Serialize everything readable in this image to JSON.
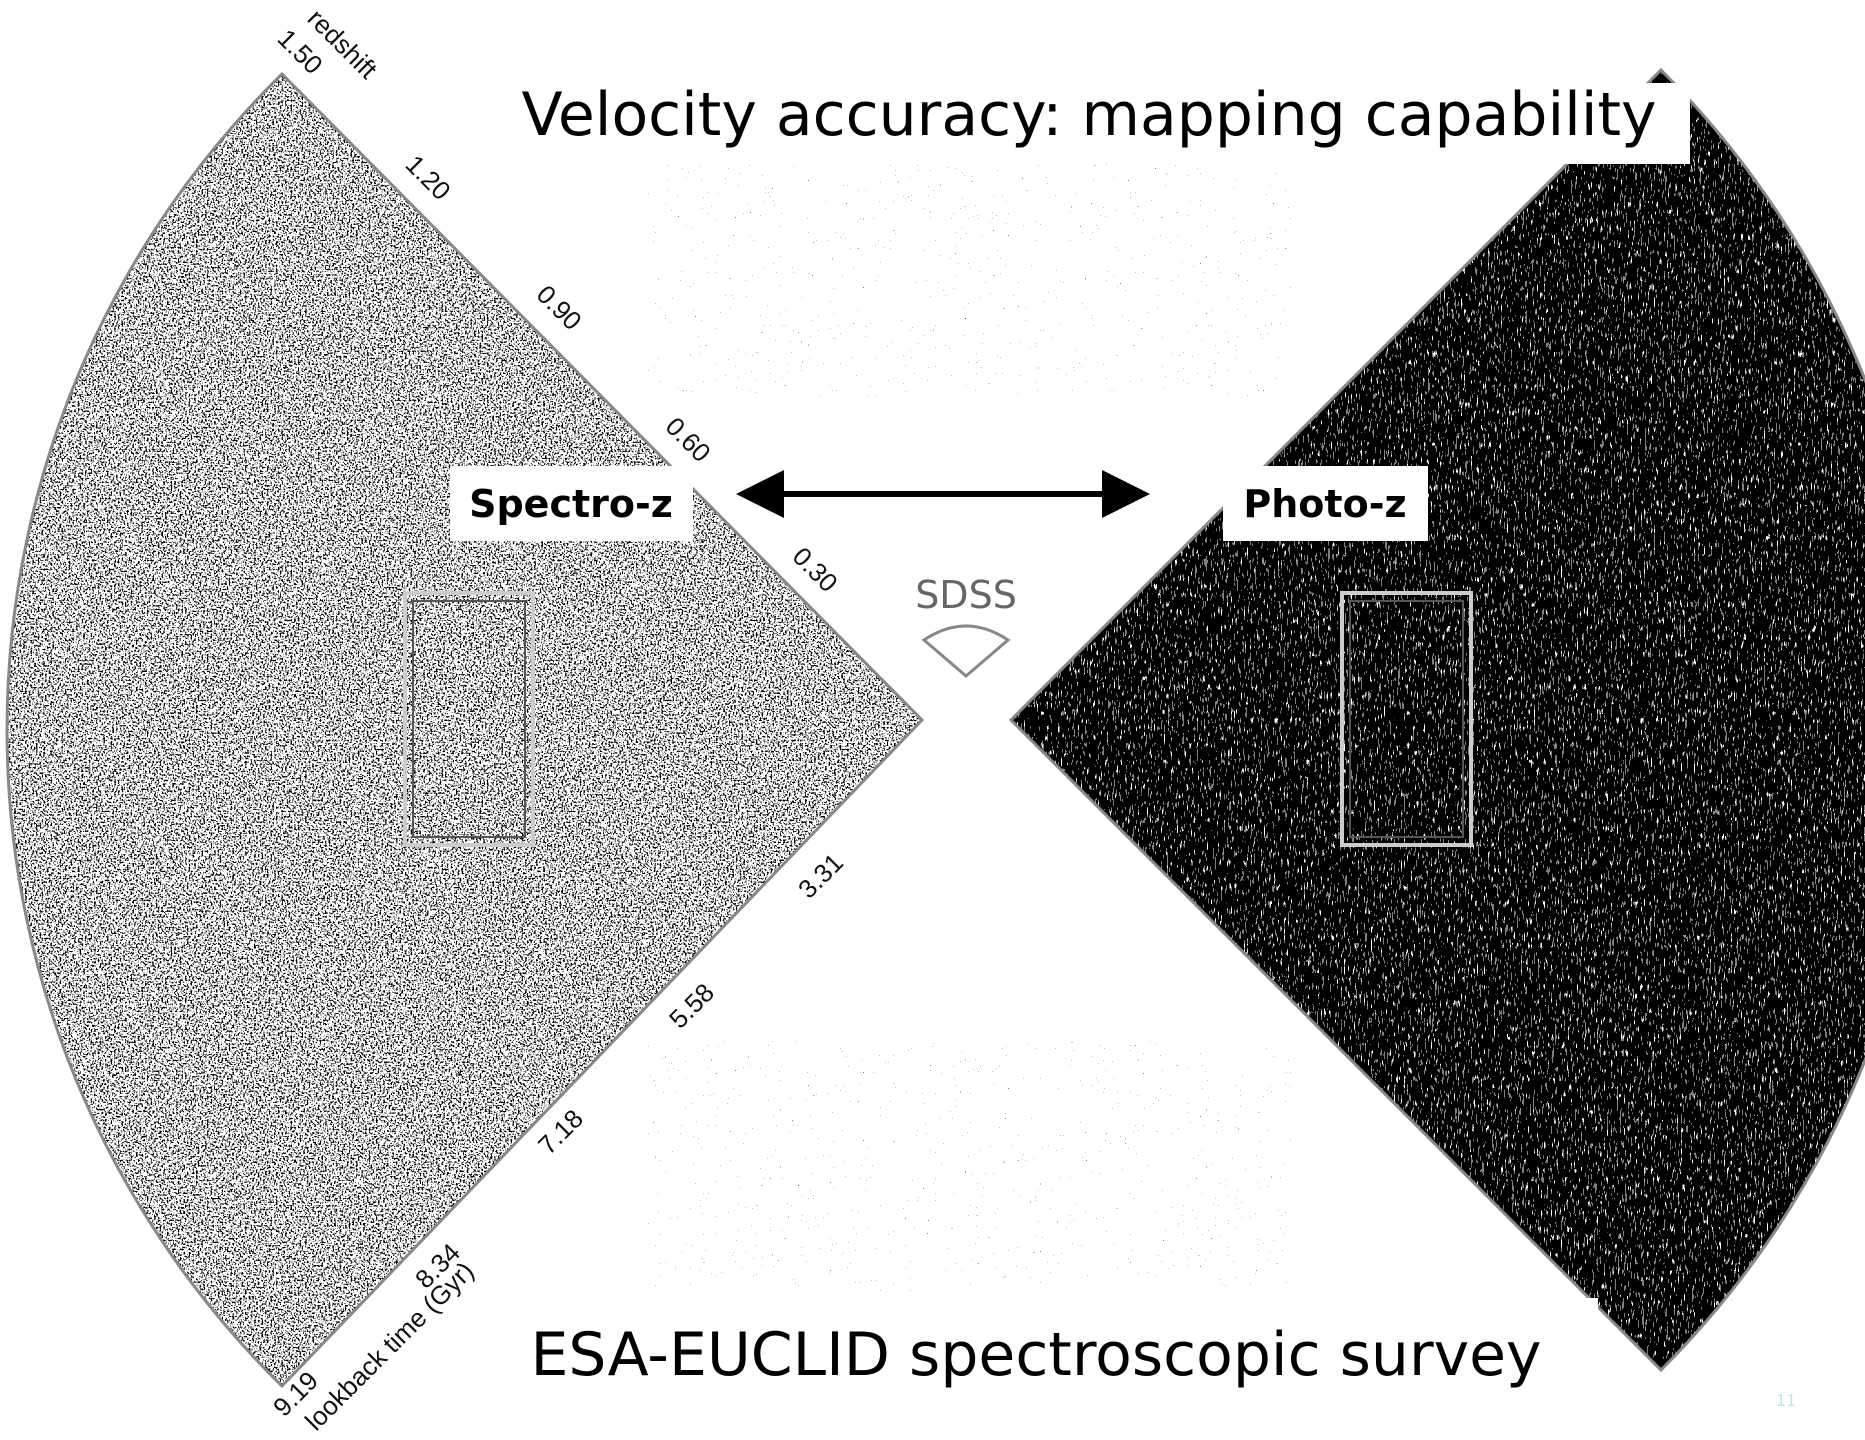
{
  "title": "Velocity accuracy: mapping capability",
  "subtitle": "ESA-EUCLID spectroscopic survey",
  "labels": {
    "spectro": "Spectro-z",
    "photo": "Photo-z",
    "sdss": "SDSS"
  },
  "redshift_axis": {
    "label": "redshift",
    "ticks": [
      "1.50",
      "1.20",
      "0.90",
      "0.60",
      "0.30"
    ]
  },
  "lookback_axis": {
    "label": "lookback time (Gyr)",
    "ticks": [
      "3.31",
      "5.58",
      "7.18",
      "8.34",
      "9.19"
    ]
  },
  "page_number": "11"
}
